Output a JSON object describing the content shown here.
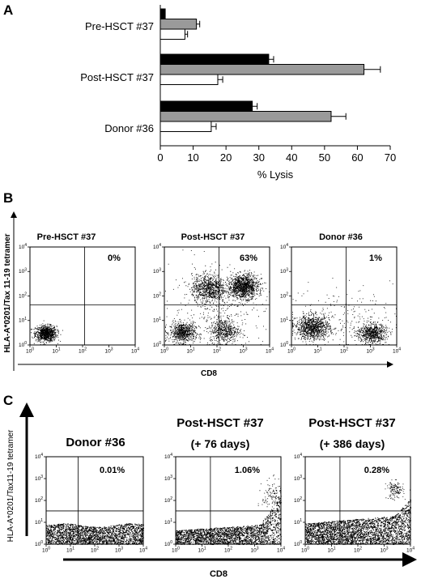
{
  "panels": {
    "A": {
      "letter": "A",
      "xlabel": "% Lysis",
      "xlim": [
        0,
        70
      ],
      "xticks": [
        0,
        10,
        20,
        30,
        40,
        50,
        60,
        70
      ],
      "groups": [
        {
          "label": "Pre-HSCT #37",
          "bars": [
            {
              "value": 1.5,
              "err": 0
            },
            {
              "value": 11,
              "err": 1
            },
            {
              "value": 7.5,
              "err": 0.8
            }
          ]
        },
        {
          "label": "Post-HSCT #37",
          "bars": [
            {
              "value": 33,
              "err": 1.5
            },
            {
              "value": 62,
              "err": 5
            },
            {
              "value": 17.5,
              "err": 1.5
            }
          ]
        },
        {
          "label": "Donor #36",
          "bars": [
            {
              "value": 28,
              "err": 1.5
            },
            {
              "value": 52,
              "err": 4.5
            },
            {
              "value": 15.5,
              "err": 1.5
            }
          ]
        }
      ],
      "bar_colors": [
        "#000000",
        "#9a9a9a",
        "#ffffff"
      ]
    },
    "B": {
      "letter": "B",
      "ylabel": "HLA-A*0201/Tax 11-19 tetramer",
      "xlabel": "CD8",
      "plots": [
        {
          "title": "Pre-HSCT #37",
          "percent": "0%"
        },
        {
          "title": "Post-HSCT #37",
          "percent": "63%"
        },
        {
          "title": "Donor #36",
          "percent": "1%"
        }
      ]
    },
    "C": {
      "letter": "C",
      "ylabel": "HLA-A*0201/Tax11-19 tetramer",
      "xlabel": "CD8",
      "plots": [
        {
          "title": "Donor #36",
          "subtitle": "",
          "percent": "0.01%"
        },
        {
          "title": "Post-HSCT #37",
          "subtitle": "(+ 76 days)",
          "percent": "1.06%"
        },
        {
          "title": "Post-HSCT #37",
          "subtitle": "(+ 386 days)",
          "percent": "0.28%"
        }
      ]
    }
  },
  "chart_data": [
    {
      "type": "bar",
      "orientation": "horizontal",
      "categories": [
        "Pre-HSCT #37",
        "Post-HSCT #37",
        "Donor #36"
      ],
      "series": [
        {
          "values": [
            1.5,
            33,
            28
          ],
          "errors": [
            0,
            1.5,
            1.5
          ]
        },
        {
          "values": [
            11,
            62,
            52
          ],
          "errors": [
            1,
            5,
            4.5
          ]
        },
        {
          "values": [
            7.5,
            17.5,
            15.5
          ],
          "errors": [
            0.8,
            1.5,
            1.5
          ]
        }
      ],
      "xlabel": "% Lysis",
      "xlim": [
        0,
        70
      ],
      "grid": false
    },
    {
      "type": "scatter",
      "xlabel": "CD8",
      "ylabel": "HLA-A*0201/Tax 11-19 tetramer",
      "axis_scale": "log",
      "xlim": [
        1,
        10000
      ],
      "ylim": [
        1,
        10000
      ],
      "panels": [
        "Pre-HSCT #37",
        "Post-HSCT #37",
        "Donor #36"
      ],
      "quadrant_percentages": [
        "0%",
        "63%",
        "1%"
      ]
    },
    {
      "type": "scatter",
      "xlabel": "CD8",
      "ylabel": "HLA-A*0201/Tax11-19 tetramer",
      "axis_scale": "log",
      "xlim": [
        1,
        10000
      ],
      "ylim": [
        1,
        10000
      ],
      "panels": [
        "Donor #36",
        "Post-HSCT #37 (+ 76 days)",
        "Post-HSCT #37 (+ 386 days)"
      ],
      "quadrant_percentages": [
        "0.01%",
        "1.06%",
        "0.28%"
      ]
    }
  ]
}
